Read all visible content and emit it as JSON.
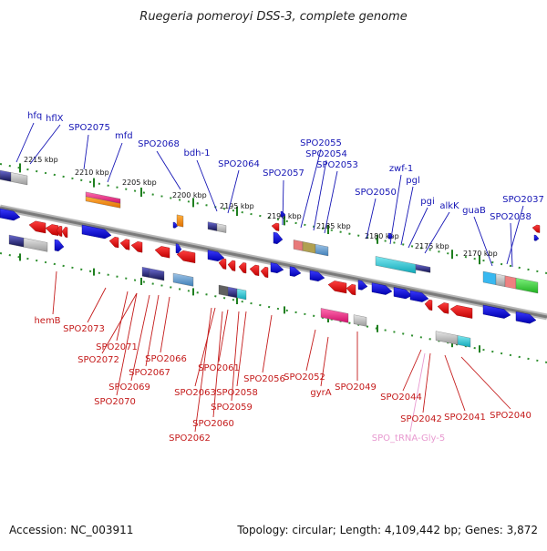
{
  "title": "Ruegeria pomeroyi DSS-3, complete genome",
  "footer": {
    "accession": "Accession: NC_003911",
    "summary": "Topology: circular; Length: 4,109,442 bp; Genes: 3,872"
  },
  "colors": {
    "top_label": "#1515b5",
    "bottom_label": "#c41a1a",
    "trna_label": "#e89ad0",
    "forward_gene": "#1010e0",
    "reverse_gene": "#ee1010",
    "backbone": "#808080",
    "scale_dots": "#2f8f2f"
  },
  "scale_ticks": [
    "2215 kbp",
    "2210 kbp",
    "2205 kbp",
    "2200 kbp",
    "2195 kbp",
    "2190 kbp",
    "2185 kbp",
    "2180 kbp",
    "2175 kbp",
    "2170 kbp"
  ],
  "top_genes": [
    "hfq",
    "hflX",
    "SPO2075",
    "mfd",
    "SPO2068",
    "bdh-1",
    "SPO2064",
    "SPO2057",
    "SPO2055",
    "SPO2054",
    "SPO2053",
    "SPO2050",
    "zwf-1",
    "pgl",
    "pgi",
    "alkK",
    "guaB",
    "SPO2037",
    "SPO2038"
  ],
  "bottom_genes": [
    "hemB",
    "SPO2073",
    "SPO2071",
    "SPO2072",
    "SPO2066",
    "SPO2067",
    "SPO2069",
    "SPO2070",
    "SPO2061",
    "SPO2063",
    "SPO2058",
    "SPO2059",
    "SPO2060",
    "SPO2062",
    "SPO2056",
    "SPO2052",
    "gyrA",
    "SPO2049",
    "SPO2044",
    "SPO2042",
    "SPO2041",
    "SPO2040"
  ],
  "trna_genes": [
    "SPO_tRNA-Gly-5"
  ]
}
